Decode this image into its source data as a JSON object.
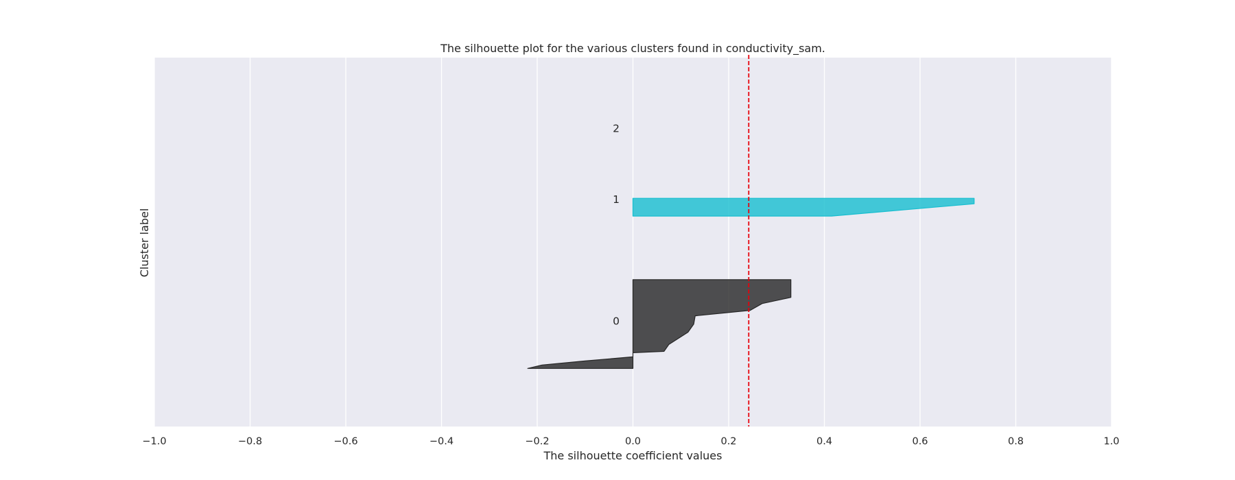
{
  "chart_data": {
    "type": "area",
    "title": "The silhouette plot for the various clusters found in conductivity_sam.",
    "xlabel": "The silhouette coefficient values",
    "ylabel": "Cluster label",
    "xlim": [
      -1.0,
      1.0
    ],
    "ylim": [
      0,
      54
    ],
    "xticks": [
      -1.0,
      -0.8,
      -0.6,
      -0.4,
      -0.2,
      0.0,
      0.2,
      0.4,
      0.6,
      0.8,
      1.0
    ],
    "xtick_labels": [
      "−1.0",
      "−0.8",
      "−0.6",
      "−0.4",
      "−0.2",
      "0.0",
      "0.2",
      "0.4",
      "0.6",
      "0.8",
      "1.0"
    ],
    "grid": true,
    "average_silhouette": 0.242,
    "clusters": [
      {
        "label": "0",
        "color": "#262626",
        "y_lower": 8.5,
        "y_upper": 21.5,
        "label_y": 15.4,
        "profile": [
          [
            0.0,
            21.5
          ],
          [
            0.33,
            21.5
          ],
          [
            0.33,
            18.9
          ],
          [
            0.27,
            18.0
          ],
          [
            0.245,
            17.0
          ],
          [
            0.13,
            16.2
          ],
          [
            0.127,
            15.0
          ],
          [
            0.115,
            13.8
          ],
          [
            0.075,
            12.0
          ],
          [
            0.065,
            11.0
          ],
          [
            0.0,
            10.8
          ],
          [
            0.0,
            8.5
          ],
          [
            -0.22,
            8.5
          ],
          [
            -0.19,
            9.0
          ],
          [
            -0.1,
            9.6
          ],
          [
            0.0,
            10.2
          ]
        ]
      },
      {
        "label": "1",
        "color": "#17becf",
        "y_lower": 30.8,
        "y_upper": 33.4,
        "label_y": 33.2,
        "profile": [
          [
            0.0,
            33.4
          ],
          [
            0.713,
            33.4
          ],
          [
            0.713,
            32.6
          ],
          [
            0.58,
            31.8
          ],
          [
            0.415,
            30.8
          ],
          [
            0.0,
            30.8
          ]
        ]
      },
      {
        "label": "2",
        "color": "#17becf",
        "y_lower": 43.6,
        "y_upper": 43.6,
        "label_y": 43.6,
        "profile": []
      }
    ]
  }
}
